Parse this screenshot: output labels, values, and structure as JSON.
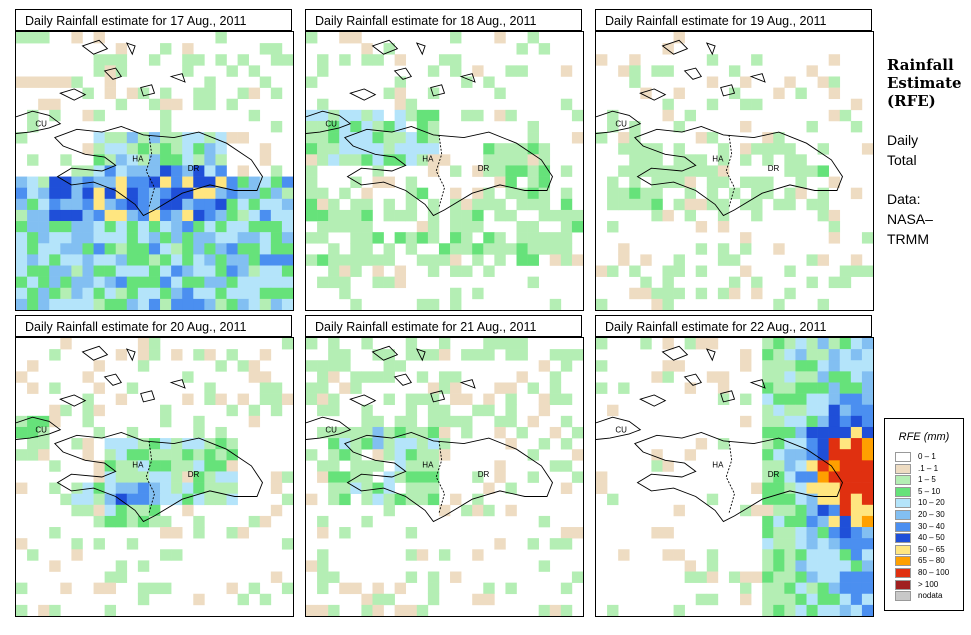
{
  "panels": [
    {
      "title": "Daily Rainfall estimate for  17 Aug., 2011",
      "labels": [
        "CU",
        "HA",
        "DR"
      ],
      "pattern": "d17"
    },
    {
      "title": "Daily Rainfall estimate for  18 Aug., 2011",
      "labels": [
        "CU",
        "HA",
        "DR"
      ],
      "pattern": "d18"
    },
    {
      "title": "Daily Rainfall estimate for  19 Aug., 2011",
      "labels": [
        "CU",
        "HA",
        "DR"
      ],
      "pattern": "d19"
    },
    {
      "title": "Daily Rainfall estimate for  20 Aug., 2011",
      "labels": [
        "CU",
        "HA",
        "DR"
      ],
      "pattern": "d20"
    },
    {
      "title": "Daily Rainfall estimate for  21 Aug., 2011",
      "labels": [
        "CU",
        "HA",
        "DR"
      ],
      "pattern": "d21"
    },
    {
      "title": "Daily Rainfall estimate for  22 Aug., 2011",
      "labels": [
        "CU",
        "HA",
        "DR"
      ],
      "pattern": "d22"
    }
  ],
  "side": {
    "title_lines": [
      "Rainfall",
      "Estimate",
      "(RFE)"
    ],
    "subtitle_lines": [
      "Daily",
      "Total"
    ],
    "source_lines": [
      "Data:",
      "NASA–",
      "TRMM"
    ]
  },
  "legend": {
    "title": "RFE (mm)",
    "items": [
      {
        "label": "0 – 1",
        "color": "#ffffff"
      },
      {
        "label": ".1 – 1",
        "color": "#eedcc2"
      },
      {
        "label": "1 – 5",
        "color": "#b4eeb4"
      },
      {
        "label": "5 – 10",
        "color": "#66e27a"
      },
      {
        "label": "10 – 20",
        "color": "#b4e4fa"
      },
      {
        "label": "20 – 30",
        "color": "#82bff2"
      },
      {
        "label": "30 – 40",
        "color": "#4b8ff0"
      },
      {
        "label": "40 – 50",
        "color": "#1f4fd8"
      },
      {
        "label": "50 – 65",
        "color": "#ffe680"
      },
      {
        "label": "65 – 80",
        "color": "#ffa000"
      },
      {
        "label": "80 – 100",
        "color": "#e03010"
      },
      {
        "label": "> 100",
        "color": "#a02020"
      },
      {
        "label": "nodata",
        "color": "#c8c8c8"
      }
    ]
  }
}
